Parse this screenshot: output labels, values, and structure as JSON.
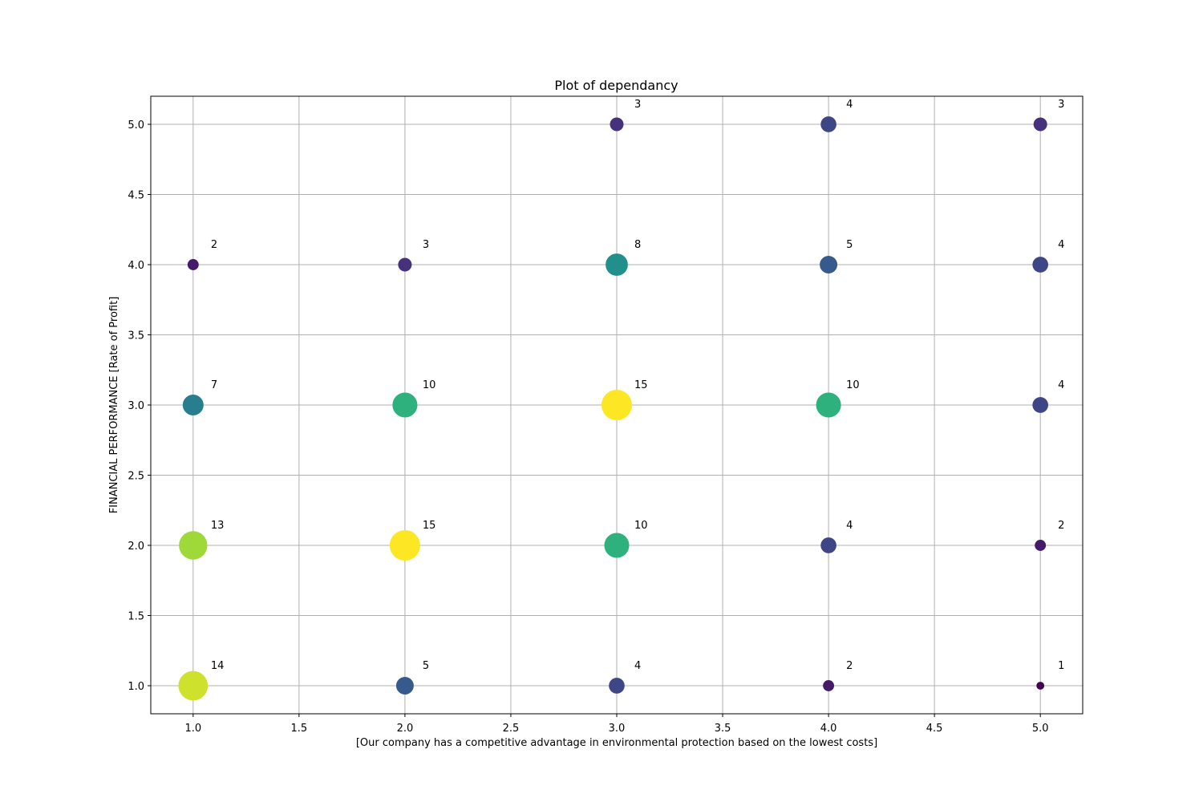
{
  "chart_data": {
    "type": "scatter",
    "title": "Plot of dependancy",
    "xlabel": "[Our company has a competitive advantage in environmental protection based on the lowest costs]",
    "ylabel": "FINANCIAL PERFORMANCE [Rate of Profit]",
    "xlim": [
      0.8,
      5.2
    ],
    "ylim": [
      0.8,
      5.2
    ],
    "xticks": [
      1.0,
      1.5,
      2.0,
      2.5,
      3.0,
      3.5,
      4.0,
      4.5,
      5.0
    ],
    "yticks": [
      1.0,
      1.5,
      2.0,
      2.5,
      3.0,
      3.5,
      4.0,
      4.5,
      5.0
    ],
    "xtick_labels": [
      "1.0",
      "1.5",
      "2.0",
      "2.5",
      "3.0",
      "3.5",
      "4.0",
      "4.5",
      "5.0"
    ],
    "ytick_labels": [
      "1.0",
      "1.5",
      "2.0",
      "2.5",
      "3.0",
      "3.5",
      "4.0",
      "4.5",
      "5.0"
    ],
    "grid": true,
    "colormap": "viridis",
    "size_and_color_encode": "count",
    "points": [
      {
        "x": 1,
        "y": 1,
        "count": 14
      },
      {
        "x": 1,
        "y": 2,
        "count": 13
      },
      {
        "x": 1,
        "y": 3,
        "count": 7
      },
      {
        "x": 1,
        "y": 4,
        "count": 2
      },
      {
        "x": 2,
        "y": 1,
        "count": 5
      },
      {
        "x": 2,
        "y": 2,
        "count": 15
      },
      {
        "x": 2,
        "y": 3,
        "count": 10
      },
      {
        "x": 2,
        "y": 4,
        "count": 3
      },
      {
        "x": 3,
        "y": 1,
        "count": 4
      },
      {
        "x": 3,
        "y": 2,
        "count": 10
      },
      {
        "x": 3,
        "y": 3,
        "count": 15
      },
      {
        "x": 3,
        "y": 4,
        "count": 8
      },
      {
        "x": 3,
        "y": 5,
        "count": 3
      },
      {
        "x": 4,
        "y": 1,
        "count": 2
      },
      {
        "x": 4,
        "y": 2,
        "count": 4
      },
      {
        "x": 4,
        "y": 3,
        "count": 10
      },
      {
        "x": 4,
        "y": 4,
        "count": 5
      },
      {
        "x": 4,
        "y": 5,
        "count": 4
      },
      {
        "x": 5,
        "y": 1,
        "count": 1
      },
      {
        "x": 5,
        "y": 2,
        "count": 2
      },
      {
        "x": 5,
        "y": 3,
        "count": 4
      },
      {
        "x": 5,
        "y": 4,
        "count": 4
      },
      {
        "x": 5,
        "y": 5,
        "count": 3
      }
    ]
  }
}
